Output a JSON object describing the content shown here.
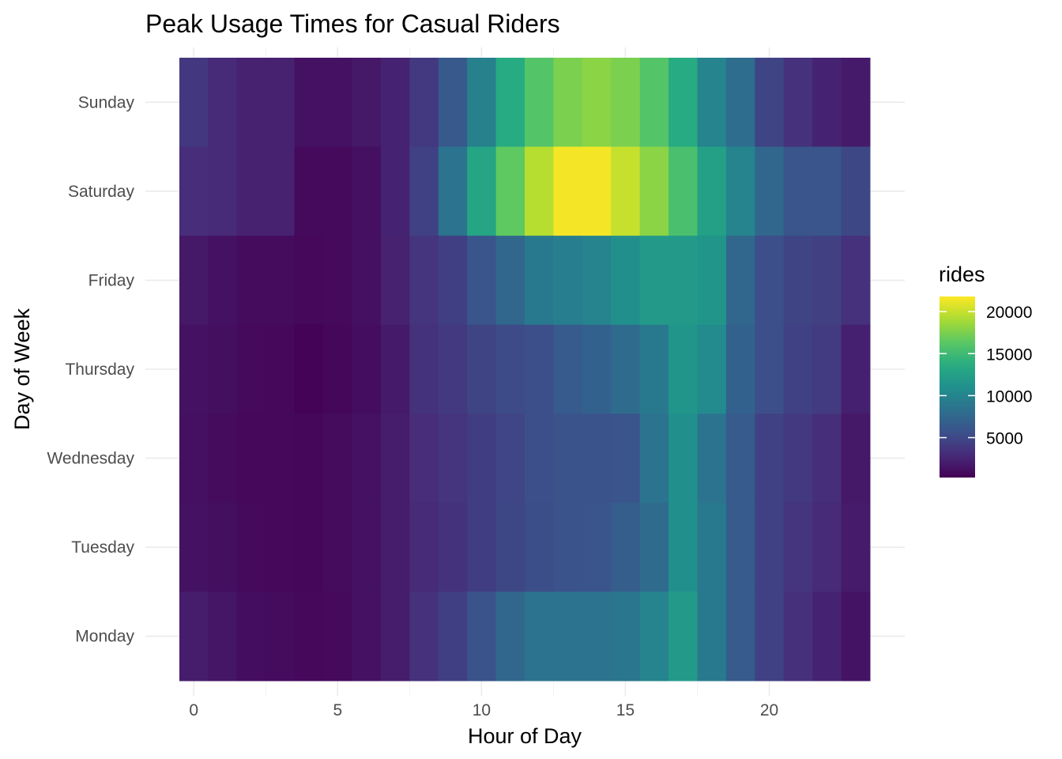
{
  "chart_data": {
    "type": "heatmap",
    "title": "Peak Usage Times for Casual Riders",
    "xlabel": "Hour of Day",
    "ylabel": "Day of Week",
    "x_ticks": [
      0,
      5,
      10,
      15,
      20
    ],
    "x_range": [
      -0.5,
      23.5
    ],
    "hours": [
      0,
      1,
      2,
      3,
      4,
      5,
      6,
      7,
      8,
      9,
      10,
      11,
      12,
      13,
      14,
      15,
      16,
      17,
      18,
      19,
      20,
      21,
      22,
      23
    ],
    "days": [
      "Sunday",
      "Saturday",
      "Friday",
      "Thursday",
      "Wednesday",
      "Tuesday",
      "Monday"
    ],
    "values": [
      [
        3800,
        2800,
        2300,
        2300,
        1300,
        1300,
        1700,
        2400,
        3900,
        6300,
        9700,
        13500,
        16000,
        17500,
        18000,
        17500,
        16000,
        13500,
        10000,
        8000,
        4700,
        3300,
        2400,
        1800
      ],
      [
        3000,
        2800,
        2300,
        2300,
        800,
        800,
        1200,
        2400,
        4500,
        8500,
        13000,
        16500,
        19500,
        21500,
        21500,
        20000,
        18000,
        15500,
        12500,
        10000,
        7500,
        6000,
        6000,
        4900
      ],
      [
        1700,
        1300,
        900,
        900,
        700,
        800,
        1200,
        2300,
        3500,
        4300,
        6000,
        7500,
        9000,
        9500,
        10000,
        11000,
        12000,
        12000,
        11500,
        7500,
        5500,
        4700,
        4400,
        3300
      ],
      [
        1300,
        1100,
        800,
        700,
        400,
        600,
        1000,
        1800,
        3400,
        3900,
        4700,
        5300,
        5500,
        6500,
        7000,
        7800,
        9000,
        11500,
        10500,
        7000,
        5500,
        4500,
        4000,
        2200
      ],
      [
        1200,
        900,
        700,
        700,
        600,
        900,
        1300,
        2000,
        3000,
        3500,
        4200,
        4800,
        5500,
        5800,
        5800,
        6000,
        8500,
        11000,
        8500,
        6500,
        4500,
        3900,
        3100,
        1700
      ],
      [
        1300,
        1100,
        800,
        700,
        600,
        900,
        1300,
        2000,
        2900,
        3400,
        4200,
        4900,
        5400,
        5800,
        6000,
        6700,
        7800,
        11000,
        9000,
        6500,
        4500,
        3500,
        2800,
        1900
      ],
      [
        2000,
        1500,
        1000,
        900,
        700,
        800,
        1300,
        2000,
        3300,
        4300,
        5800,
        7500,
        8500,
        8500,
        8500,
        8800,
        10000,
        12000,
        9000,
        6500,
        4500,
        3200,
        2400,
        1400
      ]
    ],
    "legend": {
      "title": "rides",
      "ticks": [
        5000,
        10000,
        15000,
        20000
      ],
      "tick_labels": [
        "5000",
        "10000",
        "15000",
        "20000"
      ],
      "range": [
        250,
        21800
      ],
      "placement": "right"
    },
    "colormap": "viridis",
    "grid": true
  }
}
